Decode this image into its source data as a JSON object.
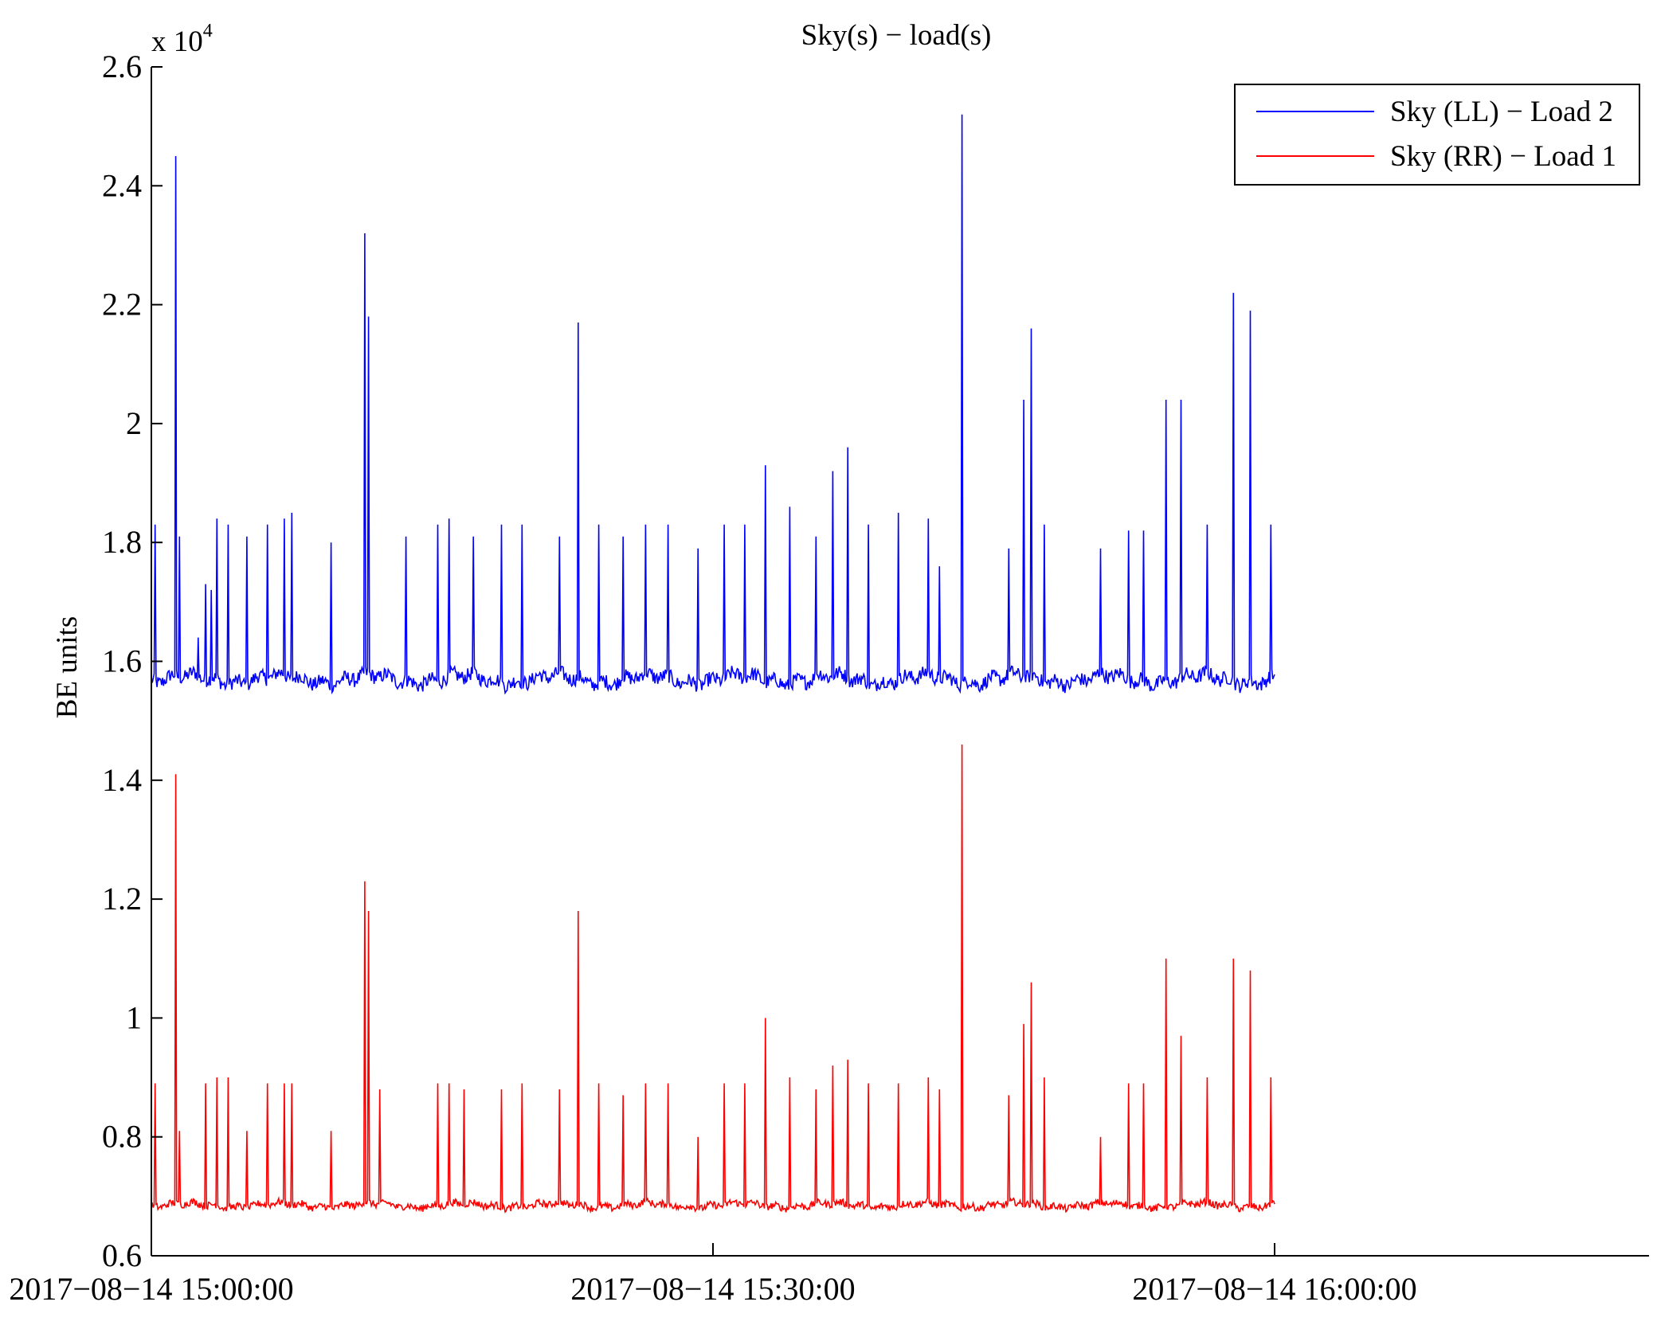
{
  "chart_data": {
    "type": "line",
    "title": "Sky(s) − load(s)",
    "xlabel": "",
    "ylabel": "BE units",
    "y_multiplier": {
      "base": "x 10",
      "exponent": "4"
    },
    "ylim": [
      0.6,
      2.6
    ],
    "yticks": [
      0.6,
      0.8,
      1.0,
      1.2,
      1.4,
      1.6,
      1.8,
      2.0,
      2.2,
      2.4,
      2.6
    ],
    "ytick_labels": [
      "0.6",
      "0.8",
      "1",
      "1.2",
      "1.4",
      "1.6",
      "1.8",
      "2",
      "2.2",
      "2.4",
      "2.6"
    ],
    "xlim": [
      "2017-08-14 15:00:00",
      "2017-08-14 16:20:00"
    ],
    "xticks": [
      "2017-08-14 15:00:00",
      "2017-08-14 15:30:00",
      "2017-08-14 16:00:00"
    ],
    "xtick_labels": [
      "2017−08−14 15:00:00",
      "2017−08−14 15:30:00",
      "2017−08−14 16:00:00"
    ],
    "x_data_range": [
      "2017-08-14 15:00:00",
      "2017-08-14 16:00:00"
    ],
    "grid": false,
    "legend_position": "top-right",
    "series": [
      {
        "name": "Sky (LL) − Load 2",
        "color": "#0000ff",
        "baseline": 1.57,
        "spikes": [
          {
            "t": "15:00:12",
            "v": 1.83
          },
          {
            "t": "15:01:18",
            "v": 2.45
          },
          {
            "t": "15:01:30",
            "v": 1.81
          },
          {
            "t": "15:02:30",
            "v": 1.64
          },
          {
            "t": "15:02:54",
            "v": 1.73
          },
          {
            "t": "15:03:12",
            "v": 1.72
          },
          {
            "t": "15:03:30",
            "v": 1.84
          },
          {
            "t": "15:04:06",
            "v": 1.83
          },
          {
            "t": "15:05:06",
            "v": 1.81
          },
          {
            "t": "15:06:12",
            "v": 1.83
          },
          {
            "t": "15:07:06",
            "v": 1.84
          },
          {
            "t": "15:07:30",
            "v": 1.85
          },
          {
            "t": "15:09:36",
            "v": 1.8
          },
          {
            "t": "15:11:24",
            "v": 2.32
          },
          {
            "t": "15:11:36",
            "v": 2.18
          },
          {
            "t": "15:13:36",
            "v": 1.81
          },
          {
            "t": "15:15:18",
            "v": 1.83
          },
          {
            "t": "15:15:54",
            "v": 1.84
          },
          {
            "t": "15:17:12",
            "v": 1.81
          },
          {
            "t": "15:18:42",
            "v": 1.83
          },
          {
            "t": "15:19:48",
            "v": 1.83
          },
          {
            "t": "15:21:48",
            "v": 1.81
          },
          {
            "t": "15:22:48",
            "v": 2.17
          },
          {
            "t": "15:23:54",
            "v": 1.83
          },
          {
            "t": "15:25:12",
            "v": 1.81
          },
          {
            "t": "15:26:24",
            "v": 1.83
          },
          {
            "t": "15:27:36",
            "v": 1.83
          },
          {
            "t": "15:29:12",
            "v": 1.79
          },
          {
            "t": "15:30:36",
            "v": 1.83
          },
          {
            "t": "15:31:42",
            "v": 1.83
          },
          {
            "t": "15:32:48",
            "v": 1.93
          },
          {
            "t": "15:34:06",
            "v": 1.86
          },
          {
            "t": "15:35:30",
            "v": 1.81
          },
          {
            "t": "15:36:24",
            "v": 1.92
          },
          {
            "t": "15:37:12",
            "v": 1.96
          },
          {
            "t": "15:38:18",
            "v": 1.83
          },
          {
            "t": "15:39:54",
            "v": 1.85
          },
          {
            "t": "15:41:30",
            "v": 1.84
          },
          {
            "t": "15:42:06",
            "v": 1.76
          },
          {
            "t": "15:43:18",
            "v": 2.52
          },
          {
            "t": "15:45:48",
            "v": 1.79
          },
          {
            "t": "15:46:36",
            "v": 2.04
          },
          {
            "t": "15:47:00",
            "v": 2.16
          },
          {
            "t": "15:47:42",
            "v": 1.83
          },
          {
            "t": "15:50:42",
            "v": 1.79
          },
          {
            "t": "15:52:12",
            "v": 1.82
          },
          {
            "t": "15:53:00",
            "v": 1.82
          },
          {
            "t": "15:54:12",
            "v": 2.04
          },
          {
            "t": "15:55:00",
            "v": 2.04
          },
          {
            "t": "15:56:24",
            "v": 1.83
          },
          {
            "t": "15:57:48",
            "v": 2.22
          },
          {
            "t": "15:58:42",
            "v": 2.19
          },
          {
            "t": "15:59:48",
            "v": 1.83
          }
        ]
      },
      {
        "name": "Sky (RR) − Load 1",
        "color": "#ff0000",
        "baseline": 0.685,
        "spikes": [
          {
            "t": "15:00:12",
            "v": 0.89
          },
          {
            "t": "15:01:18",
            "v": 1.41
          },
          {
            "t": "15:01:30",
            "v": 0.81
          },
          {
            "t": "15:02:54",
            "v": 0.89
          },
          {
            "t": "15:03:30",
            "v": 0.9
          },
          {
            "t": "15:04:06",
            "v": 0.9
          },
          {
            "t": "15:05:06",
            "v": 0.81
          },
          {
            "t": "15:06:12",
            "v": 0.89
          },
          {
            "t": "15:07:06",
            "v": 0.89
          },
          {
            "t": "15:07:30",
            "v": 0.89
          },
          {
            "t": "15:09:36",
            "v": 0.81
          },
          {
            "t": "15:11:24",
            "v": 1.23
          },
          {
            "t": "15:11:36",
            "v": 1.18
          },
          {
            "t": "15:12:12",
            "v": 0.88
          },
          {
            "t": "15:15:18",
            "v": 0.89
          },
          {
            "t": "15:15:54",
            "v": 0.89
          },
          {
            "t": "15:16:42",
            "v": 0.88
          },
          {
            "t": "15:18:42",
            "v": 0.88
          },
          {
            "t": "15:19:48",
            "v": 0.89
          },
          {
            "t": "15:21:48",
            "v": 0.88
          },
          {
            "t": "15:22:48",
            "v": 1.18
          },
          {
            "t": "15:23:54",
            "v": 0.89
          },
          {
            "t": "15:25:12",
            "v": 0.87
          },
          {
            "t": "15:26:24",
            "v": 0.89
          },
          {
            "t": "15:27:36",
            "v": 0.89
          },
          {
            "t": "15:29:12",
            "v": 0.8
          },
          {
            "t": "15:30:36",
            "v": 0.89
          },
          {
            "t": "15:31:42",
            "v": 0.89
          },
          {
            "t": "15:32:48",
            "v": 1.0
          },
          {
            "t": "15:34:06",
            "v": 0.9
          },
          {
            "t": "15:35:30",
            "v": 0.88
          },
          {
            "t": "15:36:24",
            "v": 0.92
          },
          {
            "t": "15:37:12",
            "v": 0.93
          },
          {
            "t": "15:38:18",
            "v": 0.89
          },
          {
            "t": "15:39:54",
            "v": 0.89
          },
          {
            "t": "15:41:30",
            "v": 0.9
          },
          {
            "t": "15:42:06",
            "v": 0.88
          },
          {
            "t": "15:43:18",
            "v": 1.46
          },
          {
            "t": "15:45:48",
            "v": 0.87
          },
          {
            "t": "15:46:36",
            "v": 0.99
          },
          {
            "t": "15:47:00",
            "v": 1.06
          },
          {
            "t": "15:47:42",
            "v": 0.9
          },
          {
            "t": "15:50:42",
            "v": 0.8
          },
          {
            "t": "15:52:12",
            "v": 0.89
          },
          {
            "t": "15:53:00",
            "v": 0.89
          },
          {
            "t": "15:54:12",
            "v": 1.1
          },
          {
            "t": "15:55:00",
            "v": 0.97
          },
          {
            "t": "15:56:24",
            "v": 0.9
          },
          {
            "t": "15:57:48",
            "v": 1.1
          },
          {
            "t": "15:58:42",
            "v": 1.08
          },
          {
            "t": "15:59:48",
            "v": 0.9
          }
        ]
      }
    ]
  }
}
